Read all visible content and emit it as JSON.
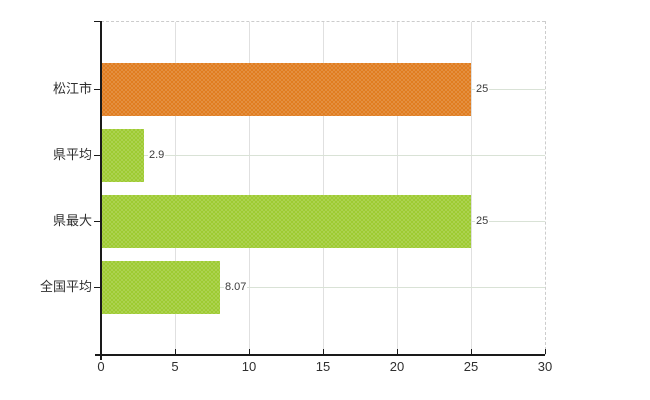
{
  "chart_data": {
    "type": "bar",
    "orientation": "horizontal",
    "title": "",
    "xlabel": "",
    "ylabel": "",
    "categories": [
      "松江市",
      "県平均",
      "県最大",
      "全国平均"
    ],
    "values": [
      25,
      2.9,
      25,
      8.07
    ],
    "value_labels": [
      "25",
      "2.9",
      "25",
      "8.07"
    ],
    "bar_colors": [
      "#e07d20",
      "#9ecb32",
      "#9ecb32",
      "#9ecb32"
    ],
    "xlim": [
      0,
      30
    ],
    "x_ticks": [
      0,
      5,
      10,
      15,
      20,
      25,
      30
    ],
    "x_tick_labels": [
      "0",
      "5",
      "10",
      "15",
      "20",
      "25",
      "30"
    ],
    "grid": true,
    "legend": false
  },
  "colors": {
    "bar_orange": "#e07d20",
    "bar_green": "#9ecb32",
    "axis": "#1a1a1a",
    "grid_vertical": "#e0e0e0",
    "grid_horizontal": "#d9e2d6",
    "plot_border_dashed": "#cccccc",
    "text": "#2f2f2f",
    "background": "#ffffff"
  }
}
